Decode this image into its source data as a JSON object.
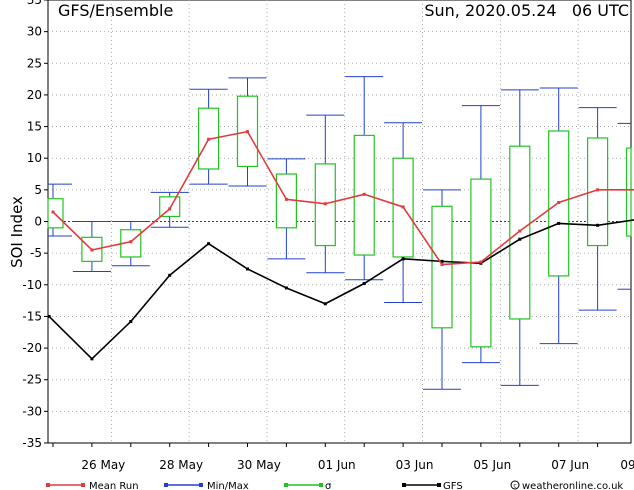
{
  "header": {
    "title": "GFS/Ensemble",
    "run_time": "Sun, 2020.05.24   06 UTC"
  },
  "chart_data": {
    "type": "line",
    "ylabel": "SOI Index",
    "xlabel": "",
    "ylim": [
      -35,
      35
    ],
    "yticks": [
      -35,
      -30,
      -25,
      -20,
      -15,
      -10,
      -5,
      0,
      5,
      10,
      15,
      20,
      25,
      30,
      35
    ],
    "grid": true,
    "xticks": [
      {
        "day": 1,
        "label": "26 May"
      },
      {
        "day": 3,
        "label": "28 May"
      },
      {
        "day": 5,
        "label": "30 May"
      },
      {
        "day": 7,
        "label": "01 Jun"
      },
      {
        "day": 9,
        "label": "03 Jun"
      },
      {
        "day": 11,
        "label": "05 Jun"
      },
      {
        "day": 13,
        "label": "07 Jun"
      },
      {
        "day": 15,
        "label": "09"
      }
    ],
    "x": [
      0,
      1,
      2,
      3,
      4,
      5,
      6,
      7,
      8,
      9,
      10,
      11,
      12,
      13,
      14,
      15
    ],
    "series": [
      {
        "name": "Mean Run",
        "color": "#e03c3c",
        "values": [
          1.5,
          -4.5,
          -3.2,
          2.0,
          13.0,
          14.2,
          3.5,
          2.8,
          4.3,
          2.3,
          -6.8,
          -6.4,
          -1.5,
          3.0,
          5.0,
          5.0
        ]
      },
      {
        "name": "GFS",
        "color": "#000000",
        "x": [
          -0.1,
          1,
          2,
          3,
          4,
          5,
          6,
          7,
          8,
          9,
          10,
          11,
          12,
          13,
          14,
          15
        ],
        "values": [
          -15,
          -21.7,
          -15.8,
          -8.5,
          -3.5,
          -7.5,
          -10.5,
          -13.0,
          -9.8,
          -5.9,
          -6.3,
          -6.6,
          -2.8,
          -0.3,
          -0.6,
          0.3
        ]
      }
    ],
    "min_max": {
      "name": "Min/Max",
      "color": "#2040d0",
      "min": [
        -2.3,
        -7.9,
        -7.0,
        -0.9,
        5.9,
        5.6,
        -5.9,
        -8.1,
        -9.2,
        -12.8,
        -26.5,
        -22.3,
        -25.9,
        -19.3,
        -14.0,
        -10.7
      ],
      "max": [
        5.9,
        0.0,
        0.0,
        4.6,
        20.9,
        22.7,
        9.9,
        16.8,
        22.9,
        15.6,
        5.0,
        18.3,
        20.8,
        21.1,
        18.0,
        15.5
      ]
    },
    "sigma": {
      "name": "σ",
      "color": "#22c322",
      "low": [
        -1.0,
        -6.3,
        -5.6,
        0.8,
        8.3,
        8.7,
        -1.0,
        -3.8,
        -5.3,
        -5.6,
        -16.8,
        -19.8,
        -15.4,
        -8.6,
        -3.8,
        -2.3
      ],
      "high": [
        3.6,
        -2.5,
        -1.3,
        3.9,
        17.9,
        19.8,
        7.5,
        9.1,
        13.6,
        10.0,
        2.4,
        6.7,
        11.9,
        14.3,
        13.2,
        11.6
      ]
    },
    "legend_position": "bottom"
  },
  "legend": [
    {
      "label": "Mean Run",
      "color": "#e03c3c"
    },
    {
      "label": "Min/Max",
      "color": "#2040d0"
    },
    {
      "label": "σ",
      "color": "#22c322"
    },
    {
      "label": "GFS",
      "color": "#000000"
    }
  ],
  "credit": "weatheronline.co.uk"
}
